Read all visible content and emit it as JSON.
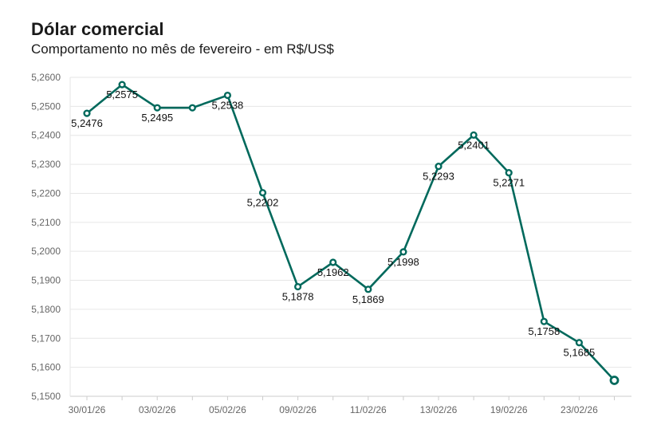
{
  "title": "Dólar comercial",
  "subtitle": "Comportamento no mês de fevereiro - em R$/US$",
  "chart_data": {
    "type": "line",
    "title": "Dólar comercial",
    "subtitle": "Comportamento no mês de fevereiro - em R$/US$",
    "xlabel": "",
    "ylabel": "",
    "ylim": [
      5.15,
      5.26
    ],
    "yticks": [
      "5,1500",
      "5,1600",
      "5,1700",
      "5,1800",
      "5,1900",
      "5,2000",
      "5,2100",
      "5,2200",
      "5,2300",
      "5,2400",
      "5,2500",
      "5,2600"
    ],
    "xtick_labels": [
      "30/01/26",
      "03/02/26",
      "05/02/26",
      "09/02/26",
      "11/02/26",
      "13/02/26",
      "19/02/26",
      "23/02/26"
    ],
    "xtick_positions": [
      0,
      2,
      4,
      6,
      8,
      10,
      12,
      14
    ],
    "grid": true,
    "color": "#00695c",
    "series": [
      {
        "values": [
          5.2476,
          5.2575,
          5.2495,
          5.2495,
          5.2538,
          5.2202,
          5.1878,
          5.1962,
          5.1869,
          5.1998,
          5.2293,
          5.2401,
          5.2271,
          5.1758,
          5.1685,
          5.1555
        ],
        "labels": [
          "5,2476",
          "5,2575",
          "5,2495",
          "",
          "5,2538",
          "5,2202",
          "5,1878",
          "5,1962",
          "5,1869",
          "5,1998",
          "5,2293",
          "5,2401",
          "5,2271",
          "5,1758",
          "5,1685",
          ""
        ]
      }
    ]
  }
}
